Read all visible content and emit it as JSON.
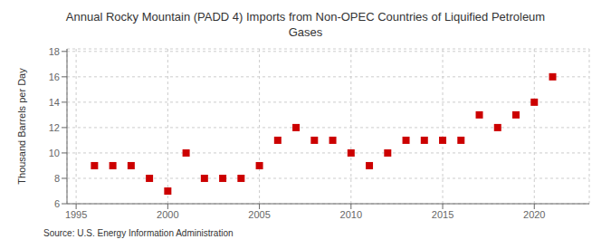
{
  "chart_data": {
    "type": "scatter",
    "title": "Annual Rocky Mountain (PADD 4) Imports from Non-OPEC Countries of Liquified Petroleum\nGases",
    "y_label": "Thousand Barrels per Day",
    "annotations": [
      "Source: U.S. Energy Information Administration"
    ],
    "x": [
      1996,
      1997,
      1998,
      1999,
      2000,
      2001,
      2002,
      2003,
      2004,
      2005,
      2006,
      2007,
      2008,
      2009,
      2010,
      2011,
      2012,
      2013,
      2014,
      2015,
      2016,
      2017,
      2018,
      2019,
      2020,
      2021
    ],
    "values": [
      9,
      9,
      9,
      8,
      7,
      10,
      8,
      8,
      8,
      9,
      11,
      12,
      11,
      11,
      10,
      9,
      10,
      11,
      11,
      11,
      11,
      13,
      12,
      13,
      14,
      16
    ],
    "color": "#cc0000",
    "marker": "square",
    "xlim": [
      1994.5,
      2023
    ],
    "ylim": [
      6,
      18.2
    ],
    "xticks": [
      1995,
      2000,
      2005,
      2010,
      2015,
      2020
    ],
    "yticks": [
      6,
      8,
      10,
      12,
      14,
      16,
      18
    ],
    "grid": true
  }
}
